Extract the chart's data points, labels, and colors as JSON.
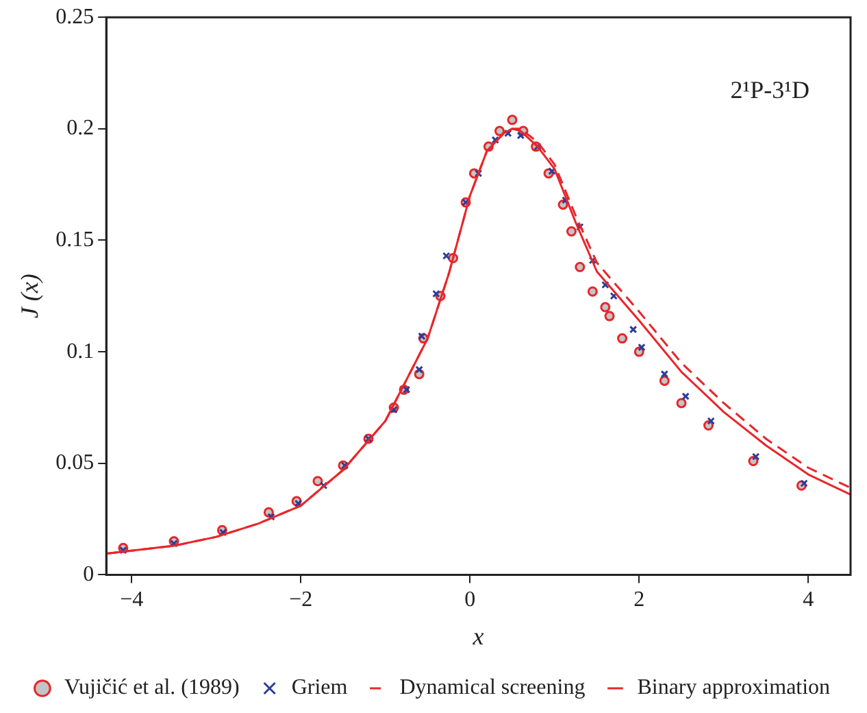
{
  "chart_data": {
    "type": "line",
    "xlabel": "x",
    "ylabel": "J (x)",
    "annotations": [
      "2¹P-3¹D"
    ],
    "xlim": [
      -4.3,
      4.5
    ],
    "ylim": [
      0,
      0.25
    ],
    "xticks": [
      -4,
      -2,
      0,
      2,
      4
    ],
    "yticks": [
      0,
      0.05,
      0.1,
      0.15,
      0.2,
      0.25
    ],
    "grid": false,
    "legend": "bottom",
    "series": [
      {
        "name": "Vujičić et al. (1989)",
        "type": "scatter",
        "marker": "circle",
        "color": "#e8262a",
        "x": [
          -4.1,
          -3.5,
          -2.93,
          -2.38,
          -2.05,
          -1.8,
          -1.5,
          -1.2,
          -0.9,
          -0.78,
          -0.6,
          -0.55,
          -0.35,
          -0.2,
          -0.05,
          0.05,
          0.22,
          0.35,
          0.5,
          0.63,
          0.78,
          0.93,
          1.1,
          1.2,
          1.3,
          1.45,
          1.6,
          1.65,
          1.8,
          2.0,
          2.3,
          2.5,
          2.82,
          3.35,
          3.92
        ],
        "values": [
          0.012,
          0.015,
          0.02,
          0.028,
          0.033,
          0.042,
          0.049,
          0.061,
          0.075,
          0.083,
          0.09,
          0.106,
          0.125,
          0.142,
          0.167,
          0.18,
          0.192,
          0.199,
          0.204,
          0.199,
          0.192,
          0.18,
          0.166,
          0.154,
          0.138,
          0.127,
          0.12,
          0.116,
          0.106,
          0.1,
          0.087,
          0.077,
          0.067,
          0.051,
          0.04
        ]
      },
      {
        "name": "Griem",
        "type": "scatter",
        "marker": "cross",
        "color": "#2b3d9a",
        "x": [
          -4.1,
          -3.5,
          -2.92,
          -2.35,
          -2.03,
          -1.73,
          -1.48,
          -1.2,
          -0.9,
          -0.75,
          -0.6,
          -0.57,
          -0.4,
          -0.28,
          -0.05,
          0.1,
          0.3,
          0.45,
          0.6,
          0.8,
          0.97,
          1.13,
          1.3,
          1.45,
          1.6,
          1.7,
          1.93,
          2.03,
          2.3,
          2.55,
          2.85,
          3.38,
          3.95
        ],
        "values": [
          0.011,
          0.014,
          0.019,
          0.026,
          0.032,
          0.04,
          0.049,
          0.061,
          0.074,
          0.083,
          0.092,
          0.107,
          0.126,
          0.143,
          0.167,
          0.18,
          0.195,
          0.198,
          0.197,
          0.192,
          0.181,
          0.168,
          0.156,
          0.141,
          0.13,
          0.125,
          0.11,
          0.102,
          0.09,
          0.08,
          0.069,
          0.053,
          0.041
        ]
      },
      {
        "name": "Dynamical screening",
        "line_style": "dashed",
        "marker": "none",
        "color": "#e8262a",
        "x": [
          -4.3,
          -3.5,
          -3,
          -2.5,
          -2,
          -1.5,
          -1,
          -0.5,
          -0.25,
          0,
          0.2,
          0.4,
          0.5,
          0.6,
          0.8,
          1,
          1.25,
          1.5,
          1.75,
          2,
          2.5,
          3,
          3.5,
          4,
          4.5
        ],
        "values": [
          0.0095,
          0.013,
          0.017,
          0.023,
          0.031,
          0.047,
          0.069,
          0.106,
          0.135,
          0.17,
          0.19,
          0.198,
          0.2,
          0.2,
          0.194,
          0.184,
          0.161,
          0.14,
          0.129,
          0.118,
          0.095,
          0.077,
          0.061,
          0.048,
          0.039
        ]
      },
      {
        "name": "Binary approximation",
        "line_style": "solid",
        "marker": "none",
        "color": "#e8262a",
        "x": [
          -4.3,
          -3.5,
          -3,
          -2.5,
          -2,
          -1.5,
          -1,
          -0.5,
          -0.25,
          0,
          0.2,
          0.4,
          0.5,
          0.6,
          0.8,
          1,
          1.25,
          1.5,
          1.75,
          2,
          2.5,
          3,
          3.5,
          4,
          4.5
        ],
        "values": [
          0.0095,
          0.013,
          0.017,
          0.023,
          0.031,
          0.047,
          0.069,
          0.106,
          0.135,
          0.17,
          0.19,
          0.198,
          0.2,
          0.199,
          0.192,
          0.182,
          0.158,
          0.136,
          0.125,
          0.114,
          0.091,
          0.073,
          0.058,
          0.045,
          0.036
        ]
      }
    ]
  }
}
